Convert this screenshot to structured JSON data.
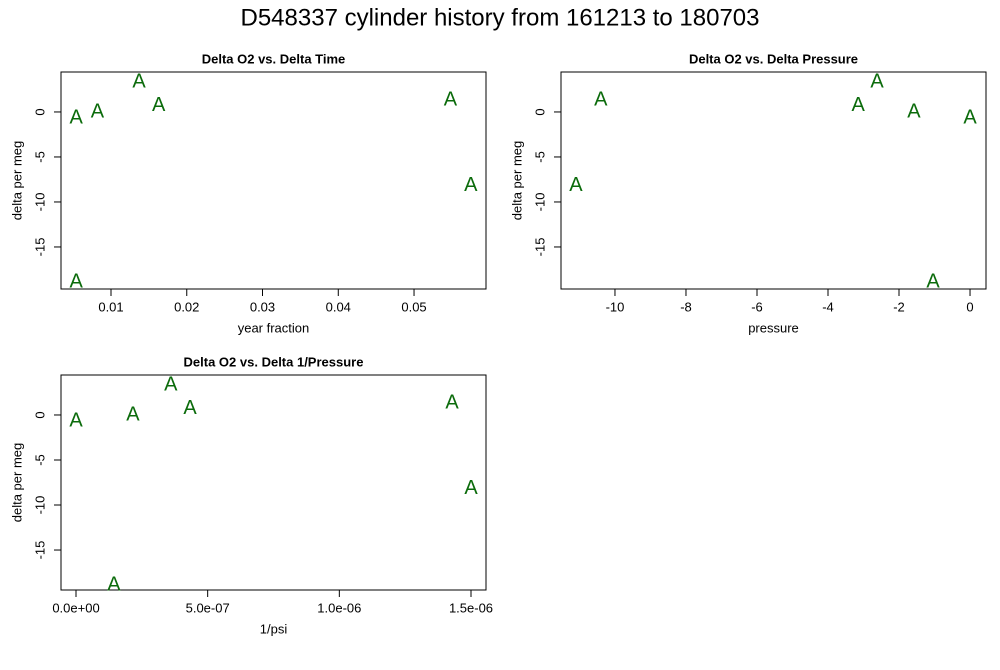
{
  "title": "D548337   cylinder history from  161213  to  180703",
  "chart_data": [
    {
      "type": "scatter",
      "title": "Delta O2 vs. Delta Time",
      "xlabel": "year fraction",
      "ylabel": "delta per meg",
      "marker": "A",
      "color": "#0b6b0b",
      "x": [
        0.0054,
        0.0082,
        0.0137,
        0.0163,
        0.0548,
        0.0575,
        0.0054
      ],
      "values": [
        -0.56,
        0.1,
        3.44,
        0.78,
        1.44,
        -8.1,
        -18.8
      ],
      "xlim": [
        0.0034,
        0.0595
      ],
      "ylim": [
        -19.67,
        4.44
      ],
      "xticks": [
        0.01,
        0.02,
        0.03,
        0.04,
        0.05
      ],
      "yticks": [
        0,
        -5,
        -10,
        -15
      ]
    },
    {
      "type": "scatter",
      "title": "Delta O2 vs. Delta Pressure",
      "xlabel": "pressure",
      "ylabel": "delta per meg",
      "marker": "A",
      "color": "#0b6b0b",
      "x": [
        0,
        -10.4,
        -3.15,
        -2.62,
        -1.58,
        -1.04,
        -11.1
      ],
      "values": [
        -0.56,
        1.44,
        0.78,
        3.44,
        0.1,
        -18.8,
        -8.1
      ],
      "xlim": [
        -11.52,
        0.45
      ],
      "ylim": [
        -19.67,
        4.44
      ],
      "xticks": [
        -10,
        -8,
        -6,
        -4,
        -2,
        0
      ],
      "yticks": [
        0,
        -5,
        -10,
        -15
      ]
    },
    {
      "type": "scatter",
      "title": "Delta O2 vs. Delta 1/Pressure",
      "xlabel": "1/psi",
      "ylabel": "delta per meg",
      "marker": "A",
      "color": "#0b6b0b",
      "x": [
        0,
        2.16e-07,
        3.6e-07,
        4.33e-07,
        1.428e-06,
        1.5e-06,
        1.44e-07
      ],
      "values": [
        -0.56,
        0.1,
        3.44,
        0.78,
        1.44,
        -8.1,
        -18.8
      ],
      "xlim": [
        -5.7e-08,
        1.557e-06
      ],
      "ylim": [
        -19.44,
        4.44
      ],
      "xticks": [
        {
          "value": 0,
          "label": "0.0e+00"
        },
        {
          "value": 5e-07,
          "label": "5.0e-07"
        },
        {
          "value": 1e-06,
          "label": "1.0e-06"
        },
        {
          "value": 1.5e-06,
          "label": "1.5e-06"
        }
      ],
      "yticks": [
        0,
        -5,
        -10,
        -15
      ]
    }
  ]
}
